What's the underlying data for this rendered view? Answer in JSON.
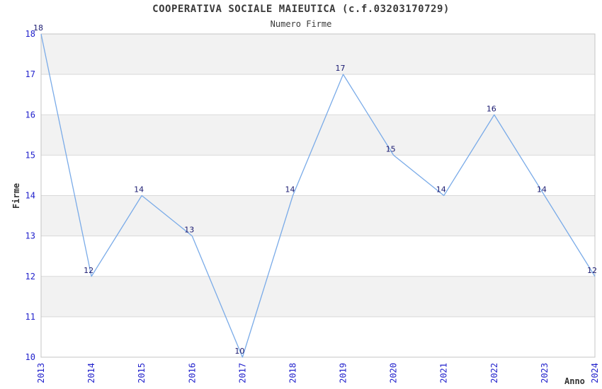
{
  "header": {
    "title": "COOPERATIVA SOCIALE MAIEUTICA (c.f.03203170729)",
    "subtitle": "Numero Firme"
  },
  "chart_data": {
    "type": "line",
    "title": "COOPERATIVA SOCIALE MAIEUTICA (c.f.03203170729)",
    "subtitle": "Numero Firme",
    "x": [
      "2013",
      "2014",
      "2015",
      "2016",
      "2017",
      "2018",
      "2019",
      "2020",
      "2021",
      "2022",
      "2023",
      "2024"
    ],
    "series": [
      {
        "name": "Numero Firme",
        "values": [
          18,
          12,
          14,
          13,
          10,
          14,
          17,
          15,
          14,
          16,
          14,
          12
        ]
      }
    ],
    "xlabel": "Anno",
    "ylabel": "Firme",
    "ylim": [
      10,
      18
    ],
    "ytick_step": 1,
    "yticks": [
      10,
      11,
      12,
      13,
      14,
      15,
      16,
      17,
      18
    ],
    "grid": "horizontal, alternating shaded bands",
    "legend": "none",
    "point_labels": "value shown above-left of each point",
    "colors": {
      "line": "#7aabe8",
      "tick_label": "#2222cc",
      "point_label": "#191970",
      "band_fill": "#f2f2f2",
      "grid_line": "#d9d9d9",
      "plot_border": "#c4c4c4",
      "title_text": "#3a3a3a",
      "axis_title_text": "#333333",
      "background": "#ffffff"
    }
  }
}
